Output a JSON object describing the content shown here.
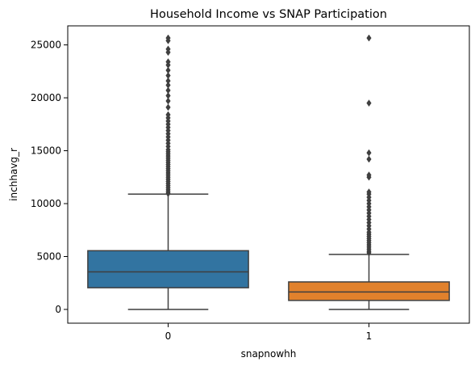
{
  "chart_data": {
    "type": "box",
    "title": "Household Income vs SNAP Participation",
    "xlabel": "snapnowhh",
    "ylabel": "inchhavg_r",
    "ylim": [
      -1300,
      26800
    ],
    "yticks": [
      0,
      5000,
      10000,
      15000,
      20000,
      25000
    ],
    "grid": false,
    "categories": [
      "0",
      "1"
    ],
    "boxes": [
      {
        "category": "0",
        "color": "#3274a1",
        "whisker_low": 0,
        "q1": 2050,
        "median": 3550,
        "q3": 5550,
        "whisker_high": 10900,
        "outliers": [
          10950,
          11100,
          11300,
          11500,
          11700,
          11900,
          12100,
          12300,
          12500,
          12700,
          12900,
          13100,
          13300,
          13500,
          13700,
          13900,
          14100,
          14300,
          14500,
          14700,
          14900,
          15100,
          15400,
          15700,
          16000,
          16300,
          16600,
          16900,
          17200,
          17500,
          17800,
          18100,
          18400,
          19100,
          19700,
          20200,
          20700,
          21200,
          21600,
          22100,
          22600,
          23100,
          23400,
          24300,
          24600,
          25400,
          25650
        ]
      },
      {
        "category": "1",
        "color": "#e1812c",
        "whisker_low": 0,
        "q1": 850,
        "median": 1650,
        "q3": 2600,
        "whisker_high": 5200,
        "outliers": [
          5350,
          5500,
          5700,
          5900,
          6100,
          6300,
          6500,
          6700,
          6900,
          7100,
          7300,
          7600,
          7900,
          8200,
          8500,
          8800,
          9100,
          9400,
          9700,
          10000,
          10300,
          10600,
          10900,
          11100,
          12500,
          12700,
          14200,
          14800,
          19500,
          25650
        ]
      }
    ]
  }
}
